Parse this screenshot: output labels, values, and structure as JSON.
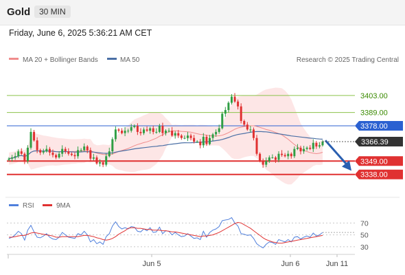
{
  "header": {
    "asset": "Gold",
    "timeframe": "30 MIN",
    "datetime": "Friday, June 6, 2025 5:36:21 AM CET"
  },
  "legend": {
    "ma20_bb": "MA 20 + Bollinger Bands",
    "ma50": "MA 50",
    "credit": "Research © 2025 Trading Central",
    "rsi": "RSI",
    "ma9": "9MA"
  },
  "colors": {
    "bull": "#2f9e44",
    "bear": "#e03131",
    "bollinger_fill": "#fde0e0",
    "ma20": "#f08c8c",
    "ma50": "#4a6fa5",
    "resistance": "#8bc34a",
    "pivot": "#2b61d1",
    "support": "#e03131",
    "arrow": "#2a5fb0",
    "rsi": "#4f7fdc",
    "rsi_ma": "#e03131",
    "last_price_bg": "#333333"
  },
  "chart_data": {
    "type": "candlestick",
    "ylim": [
      3322,
      3425
    ],
    "x_ticks": [
      "Jun 5",
      "Jun 6",
      "Jun 11"
    ],
    "last_price": "3366.39",
    "levels": [
      {
        "value": 3403.0,
        "label": "3403.00",
        "kind": "resistance"
      },
      {
        "value": 3389.0,
        "label": "3389.00",
        "kind": "resistance"
      },
      {
        "value": 3378.0,
        "label": "3378.00",
        "kind": "pivot"
      },
      {
        "value": 3349.0,
        "label": "3349.00",
        "kind": "support"
      },
      {
        "value": 3338.0,
        "label": "3338.00",
        "kind": "support"
      }
    ],
    "arrow": {
      "from": 3366.0,
      "to": 3341.0
    },
    "closes": [
      3351,
      3352,
      3353,
      3357,
      3355,
      3349,
      3360,
      3373,
      3366,
      3358,
      3356,
      3357,
      3359,
      3356,
      3354,
      3352,
      3355,
      3359,
      3357,
      3355,
      3354,
      3353,
      3358,
      3358,
      3361,
      3358,
      3351,
      3352,
      3347,
      3348,
      3346,
      3353,
      3357,
      3367,
      3375,
      3374,
      3372,
      3374,
      3374,
      3377,
      3378,
      3373,
      3372,
      3375,
      3374,
      3376,
      3373,
      3373,
      3378,
      3372,
      3374,
      3374,
      3370,
      3372,
      3370,
      3368,
      3368,
      3370,
      3368,
      3365,
      3365,
      3362,
      3369,
      3363,
      3368,
      3371,
      3373,
      3376,
      3388,
      3391,
      3397,
      3402,
      3398,
      3394,
      3382,
      3379,
      3375,
      3375,
      3368,
      3355,
      3349,
      3346,
      3349,
      3352,
      3352,
      3350,
      3355,
      3354,
      3353,
      3355,
      3353,
      3359,
      3360,
      3357,
      3359,
      3360,
      3359,
      3364,
      3361,
      3362,
      3365
    ],
    "rsi_axis": [
      70,
      50,
      30
    ],
    "rsi_values": [
      44,
      46,
      50,
      56,
      52,
      41,
      58,
      66,
      55,
      46,
      45,
      48,
      52,
      46,
      43,
      42,
      46,
      54,
      50,
      46,
      45,
      44,
      52,
      50,
      56,
      50,
      38,
      42,
      35,
      38,
      34,
      47,
      52,
      65,
      72,
      64,
      60,
      62,
      60,
      64,
      63,
      56,
      55,
      60,
      57,
      62,
      54,
      55,
      63,
      52,
      57,
      56,
      50,
      54,
      50,
      47,
      48,
      52,
      48,
      44,
      45,
      42,
      56,
      46,
      54,
      58,
      60,
      64,
      74,
      75,
      76,
      79,
      70,
      65,
      52,
      51,
      49,
      50,
      44,
      35,
      31,
      28,
      34,
      38,
      37,
      34,
      42,
      40,
      38,
      42,
      38,
      46,
      47,
      43,
      46,
      48,
      46,
      53,
      48,
      50,
      54
    ],
    "rsi_ma9": [
      46,
      46,
      47,
      48,
      49,
      49,
      51,
      53,
      54,
      53,
      52,
      51,
      50,
      49,
      48,
      46,
      46,
      47,
      47,
      47,
      47,
      47,
      47,
      48,
      49,
      49,
      48,
      47,
      45,
      44,
      42,
      41,
      42,
      44,
      47,
      51,
      54,
      57,
      61,
      62,
      62,
      61,
      61,
      60,
      59,
      59,
      58,
      58,
      58,
      57,
      57,
      56,
      55,
      55,
      54,
      53,
      52,
      51,
      50,
      49,
      48,
      47,
      48,
      48,
      49,
      50,
      52,
      54,
      57,
      60,
      63,
      66,
      69,
      71,
      70,
      67,
      64,
      61,
      57,
      53,
      49,
      45,
      42,
      40,
      38,
      37,
      36,
      36,
      37,
      38,
      39,
      40,
      41,
      42,
      43,
      44,
      45,
      46,
      47,
      48,
      49
    ]
  }
}
